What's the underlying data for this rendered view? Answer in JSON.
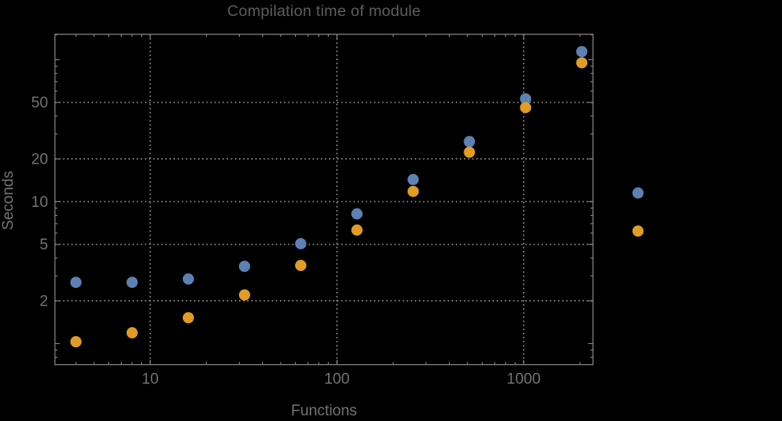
{
  "chart_data": {
    "type": "scatter",
    "title": "Compilation time of module",
    "xlabel": "Functions",
    "ylabel": "Seconds",
    "x_scale": "log",
    "y_scale": "log",
    "x_tick_labels": [
      10,
      100,
      1000
    ],
    "y_tick_labels": [
      2,
      5,
      10,
      20,
      50
    ],
    "xlim": [
      3.1,
      2350
    ],
    "ylim": [
      0.71,
      151
    ],
    "grid": "dotted lines at labeled ticks",
    "legend": "none",
    "x": [
      4,
      8,
      16,
      32,
      64,
      128,
      256,
      512,
      1024,
      2048,
      4096
    ],
    "series": [
      {
        "name": "blue",
        "color": "#5E81B5",
        "values": [
          2.7,
          2.7,
          2.85,
          3.5,
          5.05,
          8.2,
          14.3,
          26.5,
          53,
          114,
          11.5
        ]
      },
      {
        "name": "orange",
        "color": "#E19C24",
        "values": [
          1.03,
          1.19,
          1.52,
          2.2,
          3.55,
          6.3,
          11.8,
          22.3,
          46,
          95,
          6.2
        ]
      }
    ],
    "colors": {
      "background": "#000000",
      "title": "#5C5C5C",
      "axis_labels": "#737373",
      "tick_labels": "#737373",
      "frame": "#808080",
      "grid": "#8A8A8A",
      "ticks": "#7E7E7E"
    }
  }
}
